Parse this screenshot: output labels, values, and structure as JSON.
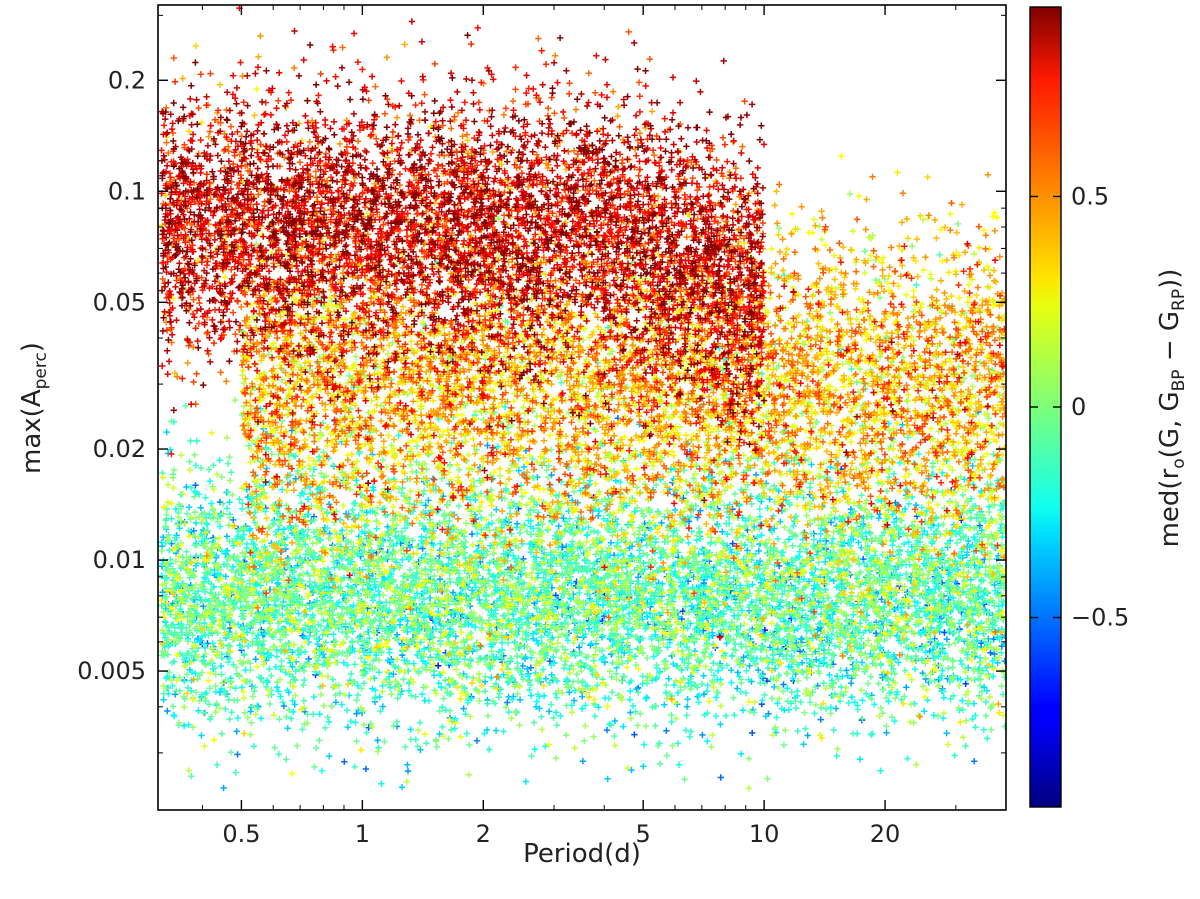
{
  "chart_data": {
    "type": "scatter",
    "xlabel": "Period(d)",
    "ylabel": {
      "main": "max(A",
      "sub": "perc",
      "close": ")"
    },
    "colorbar_label": {
      "p1": "med(r",
      "s1": "o",
      "p2": "(G, G",
      "s2": "BP",
      "p3": " − G",
      "s3": "RP",
      "p4": "))"
    },
    "x_scale": "log",
    "y_scale": "log",
    "xlim": [
      0.31,
      40
    ],
    "ylim": [
      0.0021,
      0.32
    ],
    "x_ticks": [
      {
        "value": 0.5,
        "label": "0.5"
      },
      {
        "value": 1,
        "label": "1"
      },
      {
        "value": 2,
        "label": "2"
      },
      {
        "value": 5,
        "label": "5"
      },
      {
        "value": 10,
        "label": "10"
      },
      {
        "value": 20,
        "label": "20"
      }
    ],
    "y_ticks": [
      {
        "value": 0.005,
        "label": "0.005"
      },
      {
        "value": 0.01,
        "label": "0.01"
      },
      {
        "value": 0.02,
        "label": "0.02"
      },
      {
        "value": 0.05,
        "label": "0.05"
      },
      {
        "value": 0.1,
        "label": "0.1"
      },
      {
        "value": 0.2,
        "label": "0.2"
      }
    ],
    "colorbar": {
      "range": [
        -0.95,
        0.95
      ],
      "colormap": "jet",
      "ticks": [
        {
          "value": -0.5,
          "label": "−0.5"
        },
        {
          "value": 0,
          "label": "0"
        },
        {
          "value": 0.5,
          "label": "0.5"
        }
      ]
    },
    "marker": "+",
    "series": [
      {
        "log10_period_range": [
          -0.5,
          1.0
        ],
        "amplitude_center": 0.08,
        "amplitude_spread_dex": 0.18,
        "color_value_center": 0.75,
        "count": 6500
      },
      {
        "log10_period_range": [
          -0.3,
          1.6
        ],
        "amplitude_center": 0.03,
        "amplitude_spread_dex": 0.2,
        "color_value_center": 0.35,
        "count": 7000
      },
      {
        "log10_period_range": [
          -0.5,
          1.6
        ],
        "amplitude_center": 0.008,
        "amplitude_spread_dex": 0.17,
        "color_value_center": -0.1,
        "count": 9000
      }
    ]
  }
}
